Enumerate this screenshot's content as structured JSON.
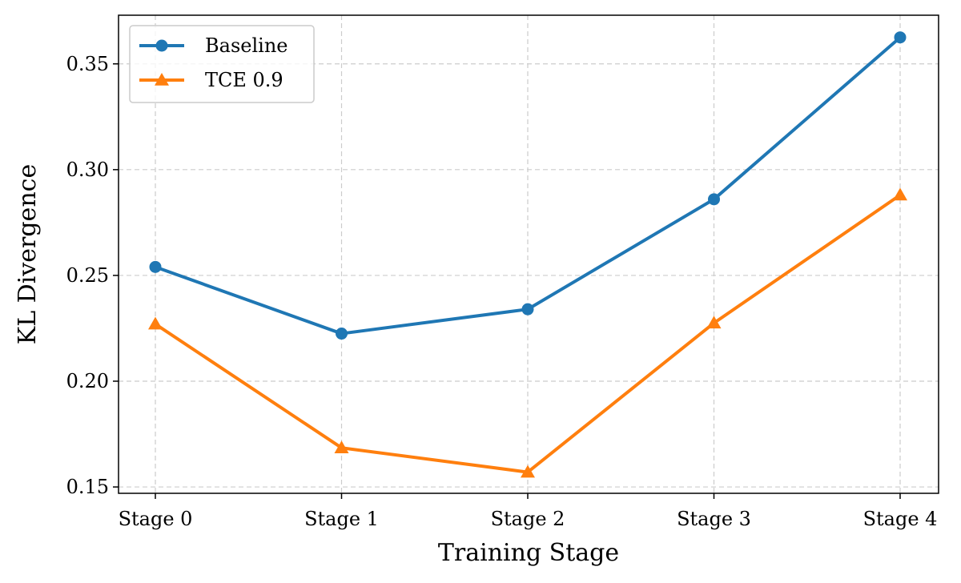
{
  "chart_data": {
    "type": "line",
    "title": "",
    "xlabel": "Training Stage",
    "ylabel": "KL Divergence",
    "categories": [
      "Stage 0",
      "Stage 1",
      "Stage 2",
      "Stage 3",
      "Stage 4"
    ],
    "ylim": [
      0.147,
      0.373
    ],
    "yticks": [
      0.15,
      0.2,
      0.25,
      0.3,
      0.35
    ],
    "ytick_labels": [
      "0.15",
      "0.20",
      "0.25",
      "0.30",
      "0.35"
    ],
    "grid": true,
    "legend_position": "top-left",
    "series": [
      {
        "name": "Baseline",
        "values": [
          0.254,
          0.2225,
          0.234,
          0.286,
          0.3625
        ],
        "color": "#1f77b4",
        "marker": "circle"
      },
      {
        "name": "TCE 0.9",
        "values": [
          0.227,
          0.1685,
          0.157,
          0.2275,
          0.288
        ],
        "color": "#ff7f0e",
        "marker": "triangle"
      }
    ]
  }
}
